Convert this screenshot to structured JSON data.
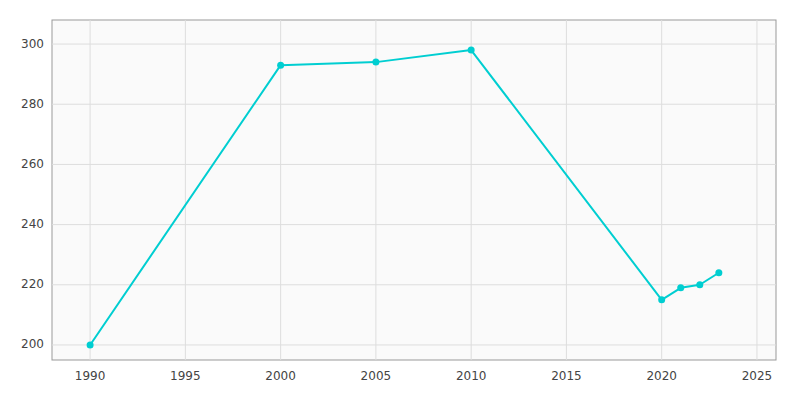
{
  "chart_data": {
    "type": "line",
    "x": [
      1990,
      2000,
      2005,
      2010,
      2020,
      2021,
      2022,
      2023
    ],
    "values": [
      200,
      293,
      294,
      298,
      215,
      219,
      220,
      224
    ],
    "color": "#00CED1",
    "marker": "circle",
    "xlim": [
      1988,
      2026
    ],
    "ylim": [
      195,
      308
    ],
    "xticks": [
      1990,
      1995,
      2000,
      2005,
      2010,
      2015,
      2020,
      2025
    ],
    "yticks": [
      200,
      220,
      240,
      260,
      280,
      300
    ],
    "grid": true
  }
}
